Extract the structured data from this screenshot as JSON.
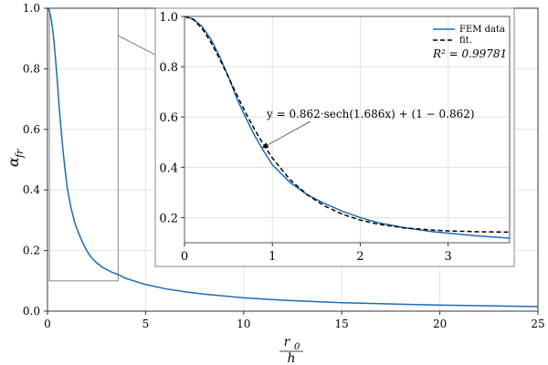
{
  "chart_data": {
    "type": "line",
    "main": {
      "xlim": [
        0,
        25
      ],
      "ylim": [
        0,
        1
      ],
      "x_ticks": [
        "0",
        "5",
        "10",
        "15",
        "20",
        "25"
      ],
      "y_ticks": [
        "0.0",
        "0.2",
        "0.4",
        "0.6",
        "0.8",
        "1.0"
      ],
      "xlabel_num": "r",
      "xlabel_sub": "0",
      "xlabel_den": "h",
      "ylabel_main": "α",
      "ylabel_sub": "fr",
      "grid": true,
      "zoom_box": {
        "x": [
          0.1,
          3.6
        ],
        "y": [
          0.1,
          1.0
        ]
      }
    },
    "inset": {
      "xlim": [
        0,
        3.7
      ],
      "ylim": [
        0.1,
        1.0
      ],
      "x_ticks": [
        "0",
        "1",
        "2",
        "3"
      ],
      "y_ticks": [
        "0.2",
        "0.4",
        "0.6",
        "0.8",
        "1.0"
      ],
      "grid": true,
      "legend_position": "top-right",
      "r2_label": "R² = 0.99781",
      "annotation": "y = 0.862·sech(1.686x) + (1 − 0.862)",
      "annotation_target": [
        0.9,
        0.48
      ]
    },
    "series": [
      {
        "name": "FEM data",
        "color": "#1f6bb4",
        "style": "solid",
        "x": [
          0,
          0.1,
          0.2,
          0.3,
          0.4,
          0.5,
          0.6,
          0.7,
          0.8,
          0.9,
          1.0,
          1.2,
          1.4,
          1.6,
          1.8,
          2.0,
          2.2,
          2.5,
          2.8,
          3.0,
          3.3,
          3.7,
          4.0,
          5.0,
          6.0,
          7.0,
          8.0,
          10.0,
          12.0,
          15.0,
          18.0,
          20.0,
          22.0,
          25.0
        ],
        "y": [
          1.0,
          0.99,
          0.96,
          0.91,
          0.84,
          0.76,
          0.67,
          0.595,
          0.525,
          0.465,
          0.41,
          0.34,
          0.29,
          0.255,
          0.225,
          0.2,
          0.18,
          0.16,
          0.145,
          0.138,
          0.128,
          0.118,
          0.108,
          0.088,
          0.074,
          0.064,
          0.056,
          0.044,
          0.036,
          0.028,
          0.023,
          0.02,
          0.018,
          0.015
        ]
      },
      {
        "name": "fit.",
        "color": "#000000",
        "style": "dashed",
        "inset_only": true,
        "x": [
          0,
          0.1,
          0.2,
          0.3,
          0.4,
          0.5,
          0.6,
          0.7,
          0.8,
          0.9,
          1.0,
          1.2,
          1.4,
          1.6,
          1.8,
          2.0,
          2.2,
          2.5,
          2.8,
          3.0,
          3.3,
          3.7
        ],
        "y": [
          1.0,
          0.988,
          0.952,
          0.898,
          0.831,
          0.759,
          0.685,
          0.614,
          0.549,
          0.49,
          0.437,
          0.351,
          0.29,
          0.245,
          0.213,
          0.19,
          0.174,
          0.159,
          0.151,
          0.147,
          0.144,
          0.142
        ]
      }
    ]
  }
}
